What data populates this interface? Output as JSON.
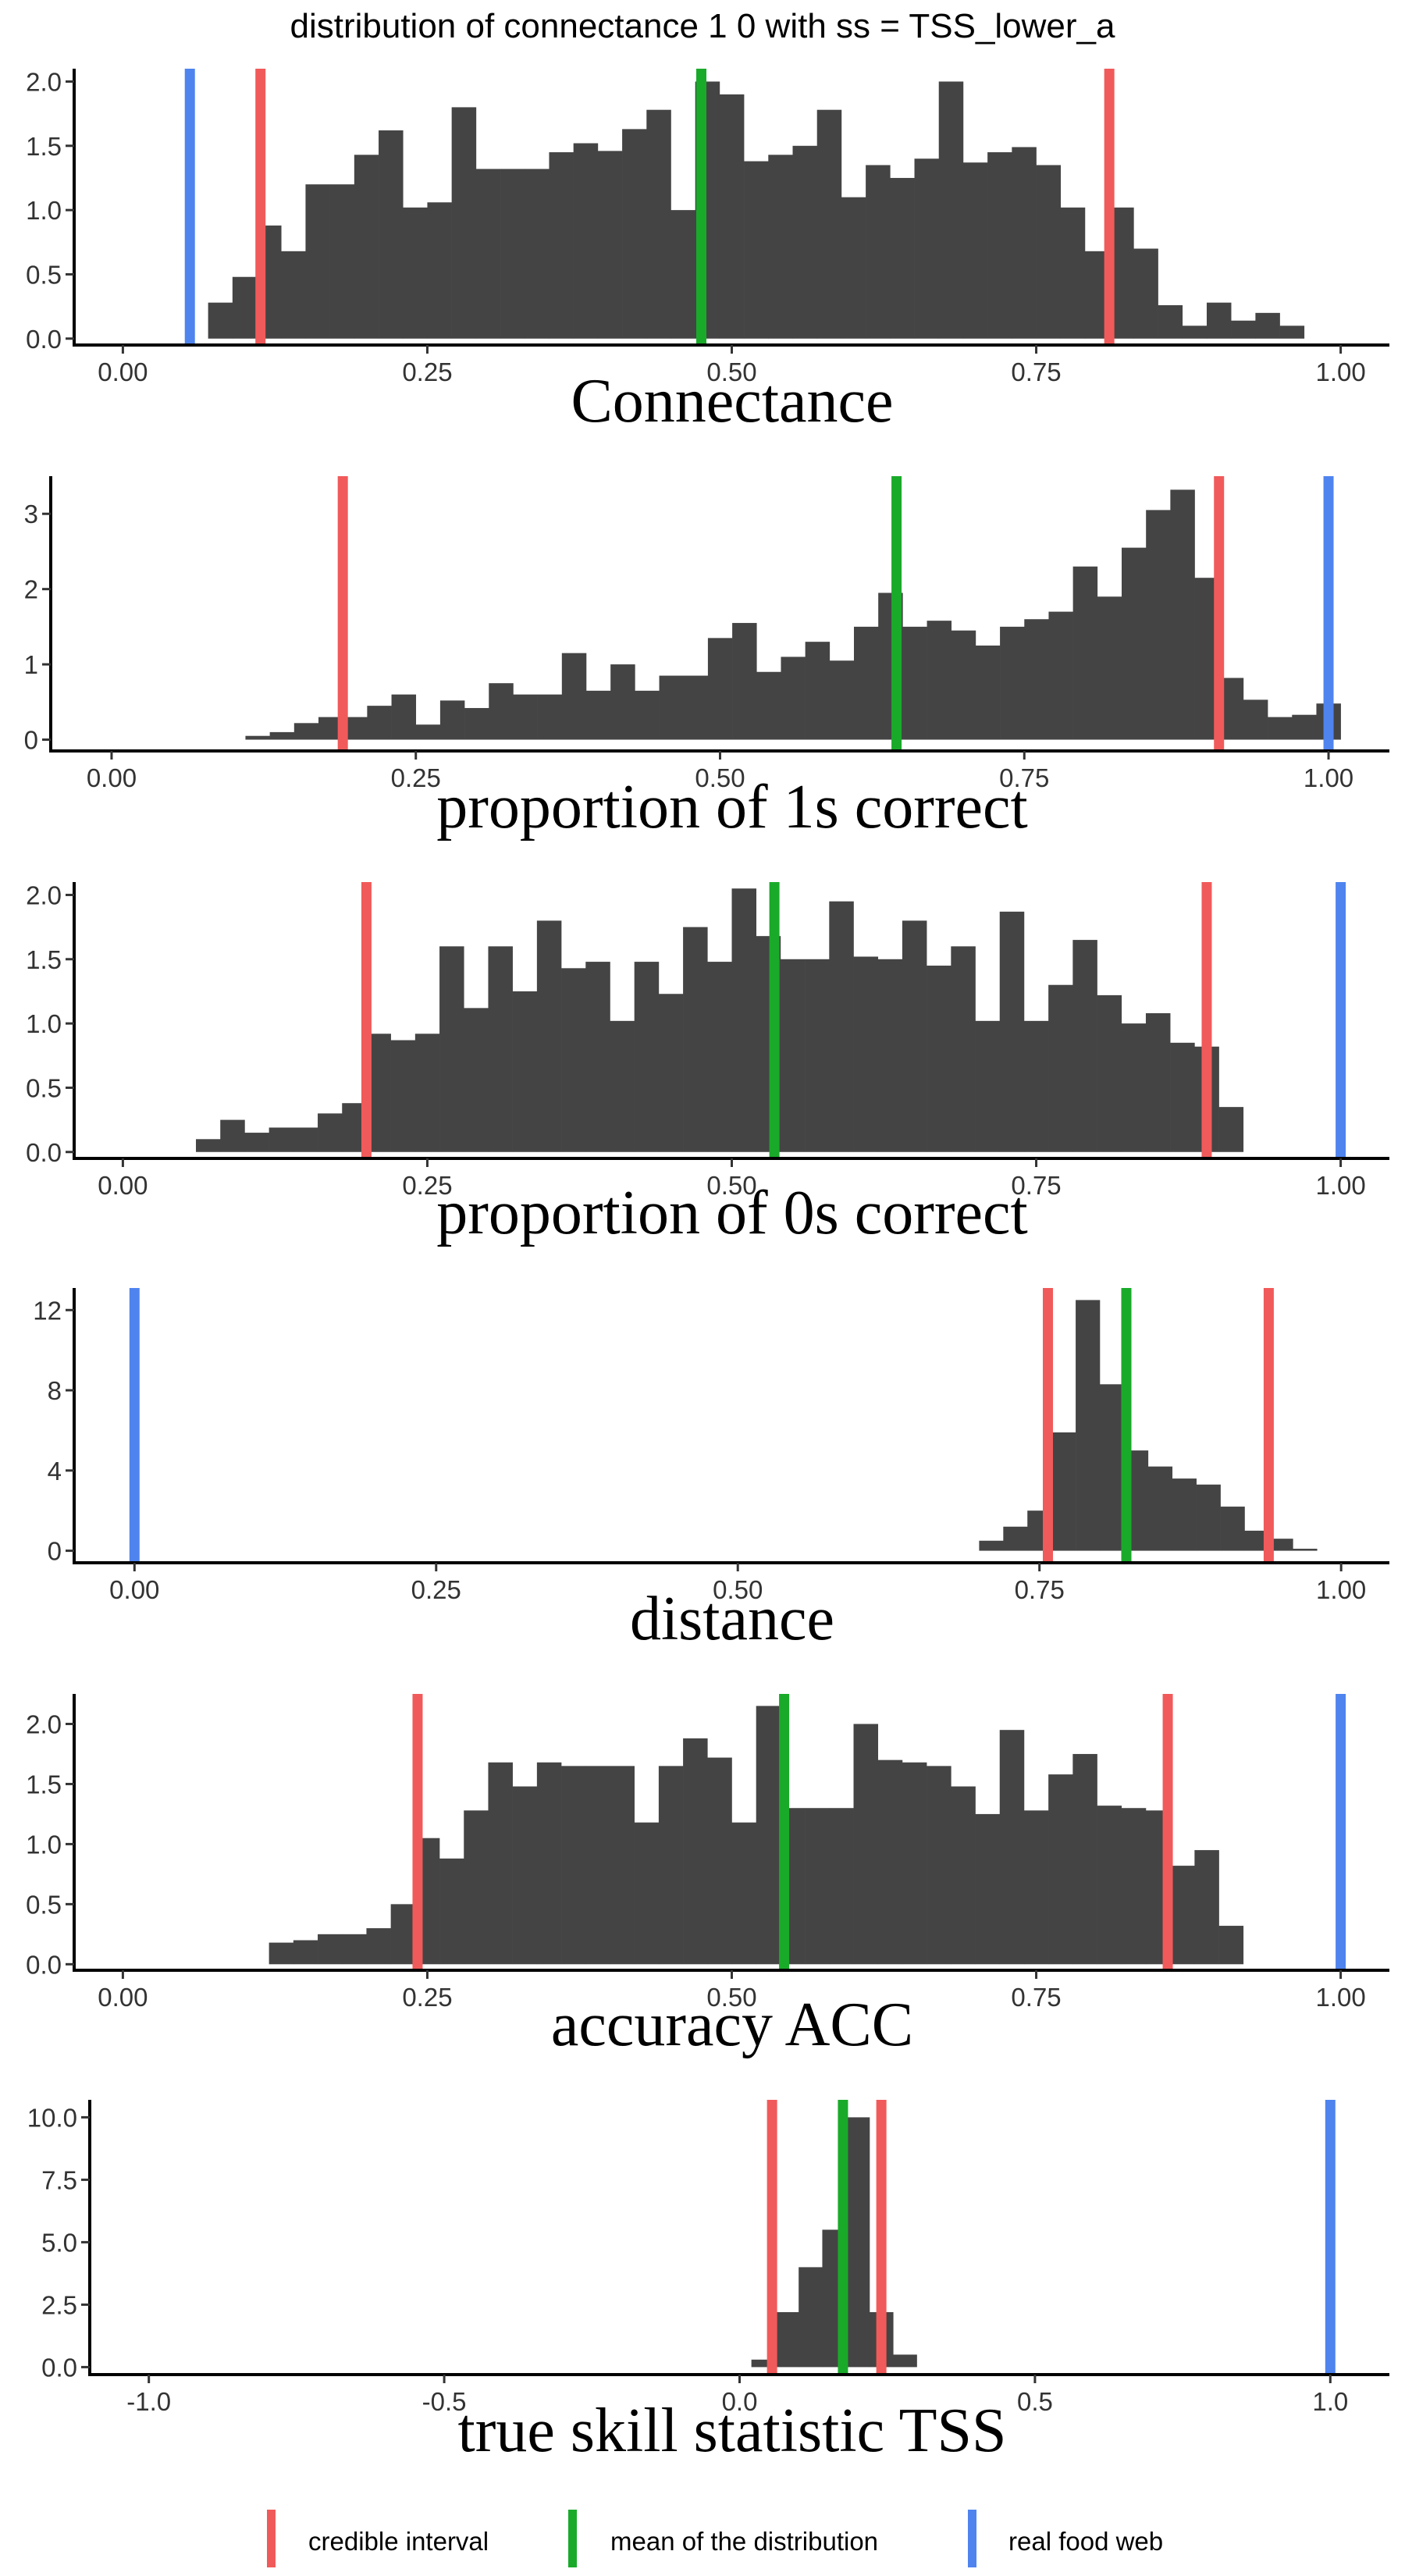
{
  "title": "distribution of connectance 1 0 with ss =  TSS_lower_a",
  "colors": {
    "bar": "#444444",
    "credible_interval": "#F15A5A",
    "mean": "#1AAA2A",
    "real": "#4F84EF",
    "axis": "#000000"
  },
  "legend": {
    "position": "bottom",
    "items": [
      {
        "label": "credible interval",
        "color": "#F15A5A"
      },
      {
        "label": "mean of the distribution",
        "color": "#1AAA2A"
      },
      {
        "label": "real food web",
        "color": "#4F84EF"
      }
    ]
  },
  "chart_data": [
    {
      "type": "bar",
      "xlabel": "Connectance",
      "xlim": [
        -0.04,
        1.04
      ],
      "ylim": [
        -0.05,
        2.1
      ],
      "xticks": [
        0,
        0.25,
        0.5,
        0.75,
        1
      ],
      "xtick_labels": [
        "0.00",
        "0.25",
        "0.50",
        "0.75",
        "1.00"
      ],
      "yticks": [
        0,
        0.5,
        1,
        1.5,
        2
      ],
      "ytick_labels": [
        "0.0",
        "0.5",
        "1.0",
        "1.5",
        "2.0"
      ],
      "bins": {
        "start": 0.07,
        "width": 0.02,
        "values": [
          0.28,
          0.48,
          0.88,
          0.68,
          1.2,
          1.2,
          1.43,
          1.62,
          1.02,
          1.06,
          1.8,
          1.32,
          1.32,
          1.32,
          1.45,
          1.52,
          1.46,
          1.63,
          1.78,
          1.0,
          2.0,
          1.9,
          1.38,
          1.43,
          1.5,
          1.78,
          1.1,
          1.35,
          1.25,
          1.4,
          2.0,
          1.37,
          1.45,
          1.49,
          1.35,
          1.02,
          0.68,
          1.02,
          0.7,
          0.26,
          0.1,
          0.28,
          0.14,
          0.2,
          0.1
        ]
      },
      "ci": [
        0.113,
        0.81
      ],
      "mean": 0.475,
      "real": 0.055
    },
    {
      "type": "bar",
      "xlabel": "proportion of 1s correct",
      "xlim": [
        -0.05,
        1.05
      ],
      "ylim": [
        -0.15,
        3.5
      ],
      "xticks": [
        0,
        0.25,
        0.5,
        0.75,
        1
      ],
      "xtick_labels": [
        "0.00",
        "0.25",
        "0.50",
        "0.75",
        "1.00"
      ],
      "yticks": [
        0,
        1,
        2,
        3
      ],
      "ytick_labels": [
        "0",
        "1",
        "2",
        "3"
      ],
      "bins": {
        "start": 0.11,
        "width": 0.02,
        "values": [
          0.05,
          0.1,
          0.22,
          0.3,
          0.3,
          0.45,
          0.6,
          0.2,
          0.52,
          0.42,
          0.75,
          0.6,
          0.6,
          1.15,
          0.65,
          1.0,
          0.65,
          0.85,
          0.85,
          1.35,
          1.55,
          0.9,
          1.1,
          1.3,
          1.05,
          1.5,
          1.95,
          1.5,
          1.58,
          1.45,
          1.25,
          1.5,
          1.6,
          1.7,
          2.3,
          1.9,
          2.55,
          3.05,
          3.32,
          2.15,
          0.82,
          0.53,
          0.3,
          0.33,
          0.48
        ]
      },
      "ci": [
        0.19,
        0.91
      ],
      "mean": 0.645,
      "real": 1.0
    },
    {
      "type": "bar",
      "xlabel": "proportion of 0s correct",
      "xlim": [
        -0.04,
        1.04
      ],
      "ylim": [
        -0.05,
        2.1
      ],
      "xticks": [
        0,
        0.25,
        0.5,
        0.75,
        1
      ],
      "xtick_labels": [
        "0.00",
        "0.25",
        "0.50",
        "0.75",
        "1.00"
      ],
      "yticks": [
        0,
        0.5,
        1,
        1.5,
        2
      ],
      "ytick_labels": [
        "0.0",
        "0.5",
        "1.0",
        "1.5",
        "2.0"
      ],
      "bins": {
        "start": 0.06,
        "width": 0.02,
        "values": [
          0.1,
          0.25,
          0.15,
          0.19,
          0.19,
          0.3,
          0.38,
          0.92,
          0.87,
          0.92,
          1.6,
          1.12,
          1.6,
          1.25,
          1.8,
          1.43,
          1.48,
          1.02,
          1.48,
          1.23,
          1.75,
          1.48,
          2.05,
          1.68,
          1.5,
          1.5,
          1.95,
          1.52,
          1.5,
          1.8,
          1.45,
          1.6,
          1.02,
          1.87,
          1.02,
          1.3,
          1.65,
          1.22,
          1.0,
          1.08,
          0.85,
          0.82,
          0.35
        ]
      },
      "ci": [
        0.2,
        0.89
      ],
      "mean": 0.535,
      "real": 1.0
    },
    {
      "type": "bar",
      "xlabel": "distance",
      "xlim": [
        -0.05,
        1.04
      ],
      "ylim": [
        -0.6,
        13.1
      ],
      "xticks": [
        0,
        0.25,
        0.5,
        0.75,
        1
      ],
      "xtick_labels": [
        "0.00",
        "0.25",
        "0.50",
        "0.75",
        "1.00"
      ],
      "yticks": [
        0,
        4,
        8,
        12
      ],
      "ytick_labels": [
        "0",
        "4",
        "8",
        "12"
      ],
      "bins": {
        "start": 0.7,
        "width": 0.02,
        "values": [
          0.5,
          1.2,
          2.0,
          5.9,
          12.5,
          8.3,
          5.0,
          4.2,
          3.6,
          3.3,
          2.2,
          1.0,
          0.6,
          0.1
        ]
      },
      "ci": [
        0.757,
        0.94
      ],
      "mean": 0.822,
      "real": 0.0
    },
    {
      "type": "bar",
      "xlabel": "accuracy ACC",
      "xlim": [
        -0.04,
        1.04
      ],
      "ylim": [
        -0.05,
        2.25
      ],
      "xticks": [
        0,
        0.25,
        0.5,
        0.75,
        1
      ],
      "xtick_labels": [
        "0.00",
        "0.25",
        "0.50",
        "0.75",
        "1.00"
      ],
      "yticks": [
        0,
        0.5,
        1,
        1.5,
        2
      ],
      "ytick_labels": [
        "0.0",
        "0.5",
        "1.0",
        "1.5",
        "2.0"
      ],
      "bins": {
        "start": 0.12,
        "width": 0.02,
        "values": [
          0.18,
          0.2,
          0.25,
          0.25,
          0.3,
          0.5,
          1.05,
          0.88,
          1.28,
          1.68,
          1.48,
          1.68,
          1.65,
          1.65,
          1.65,
          1.18,
          1.65,
          1.88,
          1.72,
          1.18,
          2.15,
          1.3,
          1.3,
          1.3,
          2.0,
          1.7,
          1.68,
          1.65,
          1.48,
          1.25,
          1.95,
          1.28,
          1.58,
          1.75,
          1.32,
          1.3,
          1.28,
          0.82,
          0.95,
          0.32
        ]
      },
      "ci": [
        0.242,
        0.858
      ],
      "mean": 0.543,
      "real": 1.0
    },
    {
      "type": "bar",
      "xlabel": "true skill statistic TSS",
      "xlim": [
        -1.1,
        1.1
      ],
      "ylim": [
        -0.3,
        10.7
      ],
      "xticks": [
        -1,
        -0.5,
        0,
        0.5,
        1
      ],
      "xtick_labels": [
        "-1.0",
        "-0.5",
        "0.0",
        "0.5",
        "1.0"
      ],
      "yticks": [
        0,
        2.5,
        5,
        7.5,
        10
      ],
      "ytick_labels": [
        "0.0",
        "2.5",
        "5.0",
        "7.5",
        "10.0"
      ],
      "bins": {
        "start": 0.02,
        "width": 0.04,
        "values": [
          0.3,
          2.2,
          4.0,
          5.5,
          10.0,
          2.2,
          0.5
        ]
      },
      "ci": [
        0.055,
        0.24
      ],
      "mean": 0.175,
      "real": 1.0
    }
  ]
}
